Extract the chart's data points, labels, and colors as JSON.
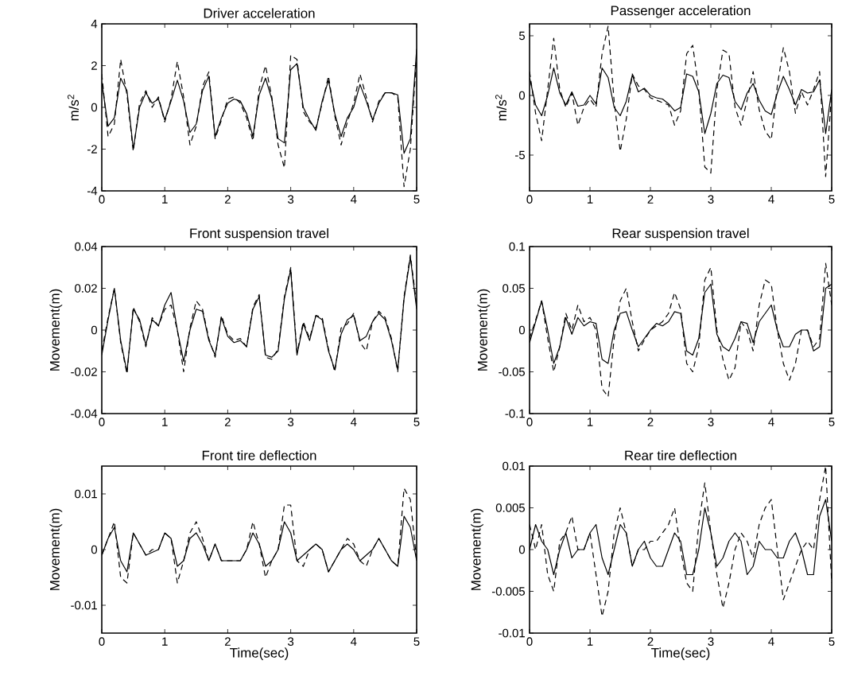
{
  "chart_data": [
    {
      "type": "line",
      "title": "Driver acceleration",
      "ylabel": "m/s$^{2}$",
      "xlim": [
        0,
        5
      ],
      "xticks": [
        0,
        1,
        2,
        3,
        4,
        5
      ],
      "ylim": [
        -4,
        4
      ],
      "yticks": [
        -4,
        -2,
        0,
        2,
        4
      ],
      "x": [
        0,
        0.1,
        0.2,
        0.3,
        0.4,
        0.5,
        0.6,
        0.7,
        0.8,
        0.9,
        1,
        1.1,
        1.2,
        1.3,
        1.4,
        1.5,
        1.6,
        1.7,
        1.8,
        1.9,
        2,
        2.1,
        2.2,
        2.3,
        2.4,
        2.5,
        2.6,
        2.7,
        2.8,
        2.9,
        3,
        3.1,
        3.2,
        3.3,
        3.4,
        3.5,
        3.6,
        3.7,
        3.8,
        3.9,
        4,
        4.1,
        4.2,
        4.3,
        4.4,
        4.5,
        4.6,
        4.7,
        4.8,
        4.9,
        5
      ],
      "series": [
        {
          "color": "#000000",
          "line_style": "solid",
          "values": [
            1.2,
            -0.9,
            -0.5,
            1.4,
            0.8,
            -2,
            0,
            0.7,
            0.2,
            0.4,
            -0.6,
            0.3,
            1.3,
            0.3,
            -1.2,
            -0.8,
            0.8,
            1.5,
            -1.4,
            -0.5,
            0.2,
            0.4,
            0.3,
            -0.3,
            -1.4,
            0.6,
            1.4,
            0.4,
            -1.5,
            -1.7,
            1.8,
            2.1,
            0,
            -0.6,
            -1.1,
            0.3,
            1.3,
            -0.3,
            -1.4,
            -0.5,
            0,
            1.1,
            0.3,
            -0.6,
            0.2,
            0.7,
            0.7,
            0.6,
            -2.2,
            -1.5,
            2.8
          ]
        },
        {
          "color": "#000000",
          "line_style": "dashed",
          "values": [
            1.6,
            -1.4,
            -0.8,
            2.3,
            0.6,
            -2.1,
            0.2,
            0.8,
            0,
            0.5,
            -0.7,
            0.4,
            2.2,
            0.5,
            -1.8,
            -0.9,
            1,
            1.7,
            -1.5,
            -0.6,
            0.4,
            0.5,
            0.2,
            -0.5,
            -1.6,
            0.9,
            2,
            0.5,
            -1.8,
            -2.9,
            2.5,
            2.3,
            -0.2,
            -0.7,
            -1,
            0.2,
            1.5,
            -0.4,
            -1.8,
            -0.7,
            0.2,
            1.6,
            0.5,
            -0.7,
            0.3,
            0.7,
            0.7,
            0.5,
            -3.8,
            -2,
            2.5
          ]
        }
      ]
    },
    {
      "type": "line",
      "title": "Passenger acceleration",
      "ylabel": "m/s$^{2}$",
      "xlim": [
        0,
        5
      ],
      "xticks": [
        0,
        1,
        2,
        3,
        4,
        5
      ],
      "ylim": [
        -8,
        6
      ],
      "yticks": [
        -5,
        0,
        5
      ],
      "x": [
        0,
        0.1,
        0.2,
        0.3,
        0.4,
        0.5,
        0.6,
        0.7,
        0.8,
        0.9,
        1,
        1.1,
        1.2,
        1.3,
        1.4,
        1.5,
        1.6,
        1.7,
        1.8,
        1.9,
        2,
        2.1,
        2.2,
        2.3,
        2.4,
        2.5,
        2.6,
        2.7,
        2.8,
        2.9,
        3,
        3.1,
        3.2,
        3.3,
        3.4,
        3.5,
        3.6,
        3.7,
        3.8,
        3.9,
        4,
        4.1,
        4.2,
        4.3,
        4.4,
        4.5,
        4.6,
        4.7,
        4.8,
        4.9,
        5
      ],
      "series": [
        {
          "color": "#000000",
          "line_style": "solid",
          "values": [
            1.5,
            -0.8,
            -1.7,
            0,
            2.3,
            0.2,
            -0.8,
            0.3,
            -0.9,
            -0.8,
            0,
            -0.7,
            2.3,
            1.5,
            -1,
            -1.7,
            -0.5,
            1.7,
            0.3,
            0.6,
            0,
            -0.2,
            -0.3,
            -0.7,
            -1.3,
            -1,
            1.8,
            1.6,
            0.3,
            -3.2,
            -1.5,
            1,
            1.7,
            1.5,
            -0.5,
            -1.2,
            0.2,
            1,
            -0.4,
            -1.3,
            -1.6,
            0.2,
            1.6,
            0.5,
            -0.8,
            0.5,
            0.2,
            0.3,
            1.3,
            -3.2,
            0.5
          ]
        },
        {
          "color": "#000000",
          "line_style": "dashed",
          "values": [
            2,
            -1.5,
            -3.8,
            0.5,
            4.8,
            0.5,
            -1,
            0.2,
            -2.5,
            -1,
            -0.3,
            -1,
            3.5,
            5.8,
            -0.5,
            -4.7,
            -2,
            1.8,
            0.8,
            0.5,
            -0.2,
            -0.4,
            -0.6,
            -0.8,
            -2.5,
            -1.3,
            3.5,
            4.2,
            0.5,
            -6,
            -6.5,
            0.5,
            3.8,
            3.5,
            -1,
            -2.5,
            -0.4,
            2,
            -1.2,
            -3,
            -3.7,
            0.8,
            4,
            2,
            -1.5,
            0.3,
            -0.8,
            0.5,
            2,
            -6.8,
            0.3
          ]
        }
      ]
    },
    {
      "type": "line",
      "title": "Front suspension travel",
      "ylabel": "Movement(m)",
      "xlim": [
        0,
        5
      ],
      "xticks": [
        0,
        1,
        2,
        3,
        4,
        5
      ],
      "ylim": [
        -0.04,
        0.04
      ],
      "yticks": [
        -0.04,
        -0.02,
        0,
        0.02,
        0.04
      ],
      "x": [
        0,
        0.1,
        0.2,
        0.3,
        0.4,
        0.5,
        0.6,
        0.7,
        0.8,
        0.9,
        1,
        1.1,
        1.2,
        1.3,
        1.4,
        1.5,
        1.6,
        1.7,
        1.8,
        1.9,
        2,
        2.1,
        2.2,
        2.3,
        2.4,
        2.5,
        2.6,
        2.7,
        2.8,
        2.9,
        3,
        3.1,
        3.2,
        3.3,
        3.4,
        3.5,
        3.6,
        3.7,
        3.8,
        3.9,
        4,
        4.1,
        4.2,
        4.3,
        4.4,
        4.5,
        4.6,
        4.7,
        4.8,
        4.9,
        5
      ],
      "series": [
        {
          "color": "#000000",
          "line_style": "solid",
          "values": [
            -0.012,
            0.005,
            0.02,
            -0.005,
            -0.02,
            0.01,
            0.005,
            -0.007,
            0.005,
            0.002,
            0.012,
            0.018,
            0,
            -0.015,
            0,
            0.01,
            0.009,
            -0.005,
            -0.012,
            0.006,
            -0.003,
            -0.006,
            -0.005,
            -0.008,
            0.01,
            0.016,
            -0.012,
            -0.013,
            -0.01,
            0.015,
            0.029,
            -0.012,
            0.003,
            -0.005,
            0.007,
            0.005,
            -0.01,
            -0.019,
            -0.002,
            0.005,
            0.007,
            -0.005,
            -0.003,
            0.004,
            0.008,
            0.005,
            -0.005,
            -0.019,
            0.015,
            0.035,
            0.01
          ]
        },
        {
          "color": "#000000",
          "line_style": "dashed",
          "values": [
            -0.01,
            0.006,
            0.02,
            -0.006,
            -0.021,
            0.011,
            0.004,
            -0.008,
            0.006,
            0.002,
            0.01,
            0.012,
            0,
            -0.02,
            0.001,
            0.014,
            0.01,
            -0.004,
            -0.013,
            0.007,
            -0.002,
            -0.005,
            -0.004,
            -0.008,
            0.011,
            0.017,
            -0.013,
            -0.014,
            -0.009,
            0.016,
            0.03,
            -0.011,
            0.004,
            -0.004,
            0.007,
            0.006,
            -0.009,
            -0.02,
            0.001,
            0.003,
            0.008,
            -0.006,
            -0.01,
            0.004,
            0.009,
            0.006,
            -0.004,
            -0.02,
            0.016,
            0.036,
            0.012
          ]
        }
      ]
    },
    {
      "type": "line",
      "title": "Rear suspension travel",
      "ylabel": "Movement(m)",
      "xlim": [
        0,
        5
      ],
      "xticks": [
        0,
        1,
        2,
        3,
        4,
        5
      ],
      "ylim": [
        -0.1,
        0.1
      ],
      "yticks": [
        -0.1,
        -0.05,
        0,
        0.05,
        0.1
      ],
      "x": [
        0,
        0.1,
        0.2,
        0.3,
        0.4,
        0.5,
        0.6,
        0.7,
        0.8,
        0.9,
        1,
        1.1,
        1.2,
        1.3,
        1.4,
        1.5,
        1.6,
        1.7,
        1.8,
        1.9,
        2,
        2.1,
        2.2,
        2.3,
        2.4,
        2.5,
        2.6,
        2.7,
        2.8,
        2.9,
        3,
        3.1,
        3.2,
        3.3,
        3.4,
        3.5,
        3.6,
        3.7,
        3.8,
        3.9,
        4,
        4.1,
        4.2,
        4.3,
        4.4,
        4.5,
        4.6,
        4.7,
        4.8,
        4.9,
        5
      ],
      "series": [
        {
          "color": "#000000",
          "line_style": "solid",
          "values": [
            -0.015,
            0.01,
            0.035,
            0,
            -0.04,
            -0.02,
            0.015,
            -0.005,
            0.015,
            0.005,
            0.01,
            0.008,
            -0.035,
            -0.04,
            0,
            0.02,
            0.022,
            0,
            -0.02,
            -0.01,
            0,
            0.008,
            0.005,
            0.01,
            0.022,
            0.02,
            -0.025,
            -0.03,
            -0.01,
            0.045,
            0.055,
            -0.005,
            -0.02,
            -0.025,
            -0.01,
            0.01,
            0.008,
            -0.015,
            0.01,
            0.02,
            0.03,
            0,
            -0.02,
            -0.02,
            -0.005,
            0,
            0,
            -0.025,
            -0.02,
            0.05,
            0.055
          ]
        },
        {
          "color": "#000000",
          "line_style": "dashed",
          "values": [
            -0.01,
            0.012,
            0.035,
            -0.01,
            -0.05,
            -0.02,
            0.02,
            0,
            0.03,
            0.01,
            0.015,
            0,
            -0.07,
            -0.08,
            -0.01,
            0.035,
            0.05,
            0.01,
            -0.025,
            -0.012,
            0,
            0.005,
            0.01,
            0.02,
            0.045,
            0.025,
            -0.04,
            -0.05,
            -0.02,
            0.06,
            0.075,
            0,
            -0.035,
            -0.06,
            -0.045,
            0.01,
            0,
            -0.025,
            0.03,
            0.06,
            0.055,
            0,
            -0.04,
            -0.06,
            -0.04,
            0,
            0,
            -0.02,
            -0.01,
            0.08,
            0.03
          ]
        }
      ]
    },
    {
      "type": "line",
      "title": "Front tire deflection",
      "xlabel": "Time(sec)",
      "ylabel": "Movement(m)",
      "xlim": [
        0,
        5
      ],
      "xticks": [
        0,
        1,
        2,
        3,
        4,
        5
      ],
      "ylim": [
        -0.015,
        0.015
      ],
      "yticks": [
        -0.01,
        0,
        0.01
      ],
      "x": [
        0,
        0.1,
        0.2,
        0.3,
        0.4,
        0.5,
        0.6,
        0.7,
        0.8,
        0.9,
        1,
        1.1,
        1.2,
        1.3,
        1.4,
        1.5,
        1.6,
        1.7,
        1.8,
        1.9,
        2,
        2.1,
        2.2,
        2.3,
        2.4,
        2.5,
        2.6,
        2.7,
        2.8,
        2.9,
        3,
        3.1,
        3.2,
        3.3,
        3.4,
        3.5,
        3.6,
        3.7,
        3.8,
        3.9,
        4,
        4.1,
        4.2,
        4.3,
        4.4,
        4.5,
        4.6,
        4.7,
        4.8,
        4.9,
        5
      ],
      "series": [
        {
          "color": "#000000",
          "line_style": "solid",
          "values": [
            -0.001,
            0.002,
            0.004,
            -0.002,
            -0.004,
            0.003,
            0.001,
            -0.001,
            -0.0005,
            0,
            0.003,
            0.002,
            -0.003,
            -0.002,
            0.002,
            0.003,
            0.001,
            -0.002,
            0.001,
            -0.002,
            -0.002,
            -0.002,
            -0.002,
            0,
            0.003,
            0.001,
            -0.003,
            -0.002,
            0,
            0.005,
            0.003,
            -0.002,
            -0.001,
            0,
            0.001,
            0,
            -0.004,
            -0.002,
            0,
            0.001,
            0,
            -0.002,
            -0.001,
            0,
            0.002,
            0,
            -0.002,
            -0.003,
            0.006,
            0.004,
            -0.002
          ]
        },
        {
          "color": "#000000",
          "line_style": "dashed",
          "values": [
            -0.001,
            0.002,
            0.005,
            -0.005,
            -0.006,
            0.003,
            0.001,
            -0.001,
            0,
            0,
            0.003,
            0.002,
            -0.006,
            -0.002,
            0.003,
            0.005,
            0.002,
            -0.002,
            0.001,
            -0.002,
            -0.002,
            -0.002,
            -0.002,
            0,
            0.005,
            0.001,
            -0.005,
            -0.002,
            0,
            0.008,
            0.008,
            -0.002,
            -0.003,
            0,
            0.001,
            0,
            -0.004,
            -0.002,
            0,
            0.002,
            0.001,
            -0.002,
            -0.003,
            0,
            0.002,
            0,
            -0.002,
            -0.003,
            0.011,
            0.009,
            -0.002
          ]
        }
      ]
    },
    {
      "type": "line",
      "title": "Rear tire deflection",
      "xlabel": "Time(sec)",
      "ylabel": "Movement(m)",
      "xlim": [
        0,
        5
      ],
      "xticks": [
        0,
        1,
        2,
        3,
        4,
        5
      ],
      "ylim": [
        -0.01,
        0.01
      ],
      "yticks": [
        -0.01,
        -0.005,
        0,
        0.005,
        0.01
      ],
      "x": [
        0,
        0.1,
        0.2,
        0.3,
        0.4,
        0.5,
        0.6,
        0.7,
        0.8,
        0.9,
        1,
        1.1,
        1.2,
        1.3,
        1.4,
        1.5,
        1.6,
        1.7,
        1.8,
        1.9,
        2,
        2.1,
        2.2,
        2.3,
        2.4,
        2.5,
        2.6,
        2.7,
        2.8,
        2.9,
        3,
        3.1,
        3.2,
        3.3,
        3.4,
        3.5,
        3.6,
        3.7,
        3.8,
        3.9,
        4,
        4.1,
        4.2,
        4.3,
        4.4,
        4.5,
        4.6,
        4.7,
        4.8,
        4.9,
        5
      ],
      "series": [
        {
          "color": "#000000",
          "line_style": "solid",
          "values": [
            0,
            0.003,
            0.001,
            0,
            -0.003,
            0,
            0.002,
            -0.001,
            0,
            0,
            0.002,
            0.003,
            -0.001,
            -0.003,
            0,
            0.003,
            0.002,
            -0.002,
            0,
            0.001,
            -0.001,
            -0.002,
            -0.002,
            0,
            0.002,
            0.001,
            -0.003,
            -0.003,
            0,
            0.005,
            0.002,
            -0.002,
            -0.001,
            0.001,
            0.002,
            0.001,
            -0.003,
            -0.002,
            0.001,
            0,
            0,
            -0.001,
            -0.001,
            0.001,
            0.002,
            0,
            -0.003,
            -0.003,
            0.004,
            0.006,
            0.001
          ]
        },
        {
          "color": "#000000",
          "line_style": "dashed",
          "values": [
            0.003,
            0,
            0.003,
            -0.003,
            -0.005,
            0.001,
            0.002,
            0.004,
            0,
            0,
            0.002,
            -0.003,
            -0.008,
            -0.005,
            0.002,
            0.005,
            0.002,
            -0.002,
            0,
            0,
            0.001,
            0.001,
            0.002,
            0.003,
            0.005,
            0,
            -0.004,
            -0.005,
            0.003,
            0.008,
            0.002,
            -0.003,
            -0.007,
            -0.004,
            0,
            0.002,
            0.001,
            -0.001,
            0.003,
            0.005,
            0.006,
            0,
            -0.006,
            -0.004,
            -0.002,
            0,
            0.001,
            0,
            0.006,
            0.01,
            -0.004
          ]
        }
      ]
    }
  ]
}
